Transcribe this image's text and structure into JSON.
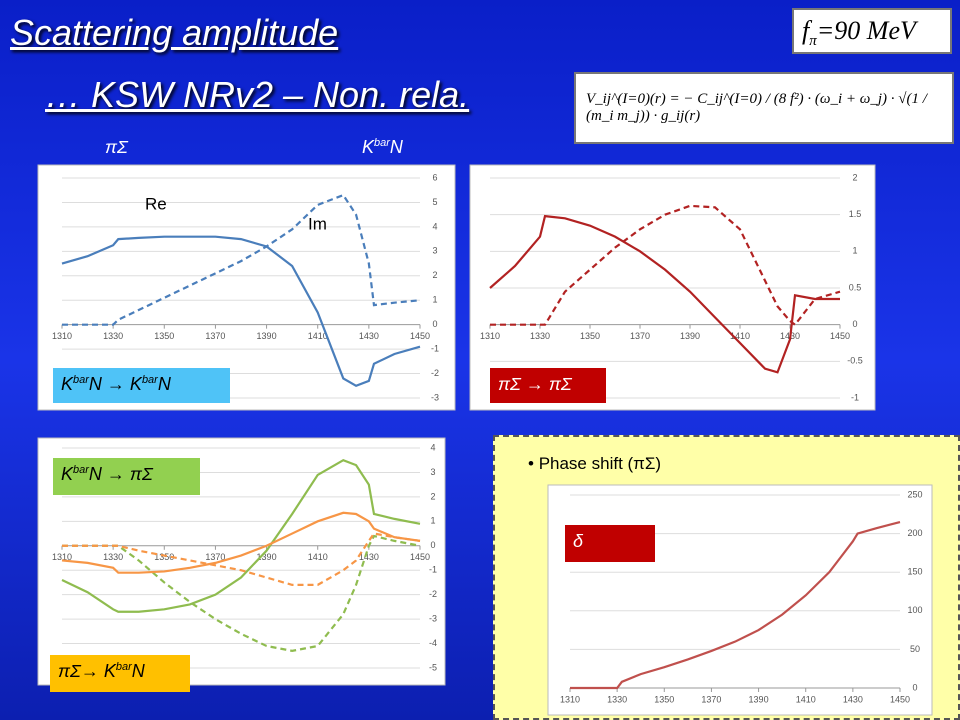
{
  "slide": {
    "title1": "Scattering amplitude ",
    "title2": "… KSW NRv2 – Non. rela.",
    "fpi": [
      "f",
      "π",
      "=90 MeV"
    ],
    "formula": "V_ij^(I=0)(r) = − C_ij^(I=0) / (8 f²) · (ω_i + ω_j) · √(1 / (m_i m_j)) · g_ij(r)",
    "top_left": "πΣ",
    "top_right": [
      "K",
      "bar",
      "N"
    ],
    "bullet": "Phase shift (πΣ)"
  },
  "chart_data": [
    {
      "type": "line",
      "tag": [
        "K",
        "bar",
        "N → K",
        "bar",
        "N"
      ],
      "grid": true,
      "xlim": [
        1310,
        1450
      ],
      "xticks": [
        1310,
        1330,
        1350,
        1370,
        1390,
        1410,
        1430,
        1450
      ],
      "ylim": [
        -3,
        6
      ],
      "yticks": [
        -3,
        -2,
        -1,
        0,
        1,
        2,
        3,
        4,
        5,
        6
      ],
      "x": [
        1310,
        1320,
        1330,
        1332,
        1340,
        1350,
        1360,
        1370,
        1380,
        1390,
        1400,
        1410,
        1420,
        1425,
        1430,
        1432,
        1440,
        1450
      ],
      "series": [
        {
          "name": "Re",
          "color": "#4a7ebb",
          "dash": false,
          "values": [
            2.5,
            2.8,
            3.25,
            3.5,
            3.55,
            3.6,
            3.6,
            3.6,
            3.5,
            3.2,
            2.4,
            0.5,
            -2.2,
            -2.5,
            -2.3,
            -1.6,
            -1.2,
            -0.9
          ]
        },
        {
          "name": "Im",
          "color": "#4a7ebb",
          "dash": true,
          "values": [
            0,
            0,
            0,
            0.2,
            0.6,
            1.1,
            1.6,
            2.1,
            2.6,
            3.2,
            3.9,
            4.9,
            5.3,
            4.5,
            2.5,
            0.8,
            0.9,
            1.0
          ]
        }
      ]
    },
    {
      "type": "line",
      "tag": [
        "πΣ → πΣ"
      ],
      "grid": true,
      "xlim": [
        1310,
        1450
      ],
      "xticks": [
        1310,
        1330,
        1350,
        1370,
        1390,
        1410,
        1430,
        1450
      ],
      "ylim": [
        -1,
        2
      ],
      "yticks": [
        -1,
        -0.5,
        0,
        0.5,
        1,
        1.5,
        2
      ],
      "x": [
        1310,
        1320,
        1330,
        1332,
        1340,
        1350,
        1360,
        1370,
        1380,
        1390,
        1400,
        1410,
        1420,
        1425,
        1430,
        1432,
        1440,
        1450
      ],
      "series": [
        {
          "color": "#b22222",
          "dash": false,
          "values": [
            0.5,
            0.8,
            1.2,
            1.48,
            1.45,
            1.35,
            1.2,
            1.0,
            0.75,
            0.45,
            0.1,
            -0.25,
            -0.6,
            -0.65,
            -0.2,
            0.4,
            0.35,
            0.35
          ]
        },
        {
          "color": "#b22222",
          "dash": true,
          "values": [
            0,
            0,
            0,
            0,
            0.45,
            0.75,
            1.05,
            1.3,
            1.5,
            1.62,
            1.6,
            1.3,
            0.6,
            0.25,
            0.05,
            0.0,
            0.35,
            0.45
          ]
        }
      ]
    },
    {
      "type": "line",
      "tag": [
        "K",
        "bar",
        "N → πΣ"
      ],
      "tag2": [
        "πΣ→ K",
        "bar",
        "N"
      ],
      "grid": true,
      "xlim": [
        1310,
        1450
      ],
      "xticks": [
        1310,
        1330,
        1350,
        1370,
        1390,
        1410,
        1430,
        1450
      ],
      "ylim": [
        -5,
        4
      ],
      "yticks": [
        -5,
        -4,
        -3,
        -2,
        -1,
        0,
        1,
        2,
        3,
        4
      ],
      "x": [
        1310,
        1320,
        1330,
        1332,
        1340,
        1350,
        1360,
        1370,
        1380,
        1390,
        1400,
        1410,
        1420,
        1425,
        1430,
        1432,
        1440,
        1450
      ],
      "series": [
        {
          "color": "#8fbc4f",
          "dash": false,
          "values": [
            -1.4,
            -1.9,
            -2.6,
            -2.7,
            -2.7,
            -2.6,
            -2.4,
            -2.0,
            -1.3,
            -0.2,
            1.3,
            2.9,
            3.5,
            3.3,
            2.5,
            1.3,
            1.1,
            0.9
          ]
        },
        {
          "color": "#8fbc4f",
          "dash": true,
          "values": [
            0,
            0,
            0,
            0,
            -0.6,
            -1.5,
            -2.3,
            -3.0,
            -3.6,
            -4.1,
            -4.3,
            -4.1,
            -2.8,
            -1.6,
            0.0,
            0.4,
            0.2,
            0.0
          ]
        },
        {
          "color": "#f79646",
          "dash": false,
          "values": [
            -0.6,
            -0.7,
            -0.9,
            -1.1,
            -1.1,
            -1.05,
            -0.9,
            -0.7,
            -0.4,
            0.0,
            0.5,
            1.0,
            1.35,
            1.3,
            1.0,
            0.7,
            0.35,
            0.2
          ]
        },
        {
          "color": "#f79646",
          "dash": true,
          "values": [
            0,
            0,
            0,
            0,
            -0.2,
            -0.4,
            -0.6,
            -0.8,
            -1.0,
            -1.3,
            -1.6,
            -1.6,
            -1.0,
            -0.6,
            0.2,
            0.5,
            0.35,
            0.2
          ]
        }
      ]
    },
    {
      "type": "line",
      "tag": [
        "δ"
      ],
      "grid": true,
      "xlim": [
        1310,
        1450
      ],
      "xticks": [
        1310,
        1330,
        1350,
        1370,
        1390,
        1410,
        1430,
        1450
      ],
      "ylim": [
        0,
        250
      ],
      "yticks": [
        0,
        50,
        100,
        150,
        200,
        250
      ],
      "x": [
        1310,
        1320,
        1330,
        1332,
        1340,
        1350,
        1360,
        1370,
        1380,
        1390,
        1400,
        1410,
        1420,
        1425,
        1430,
        1432,
        1440,
        1450
      ],
      "series": [
        {
          "color": "#c0504d",
          "dash": false,
          "values": [
            0,
            0,
            0,
            8,
            18,
            27,
            37,
            48,
            60,
            75,
            95,
            120,
            150,
            170,
            190,
            200,
            207,
            215
          ]
        }
      ]
    }
  ]
}
